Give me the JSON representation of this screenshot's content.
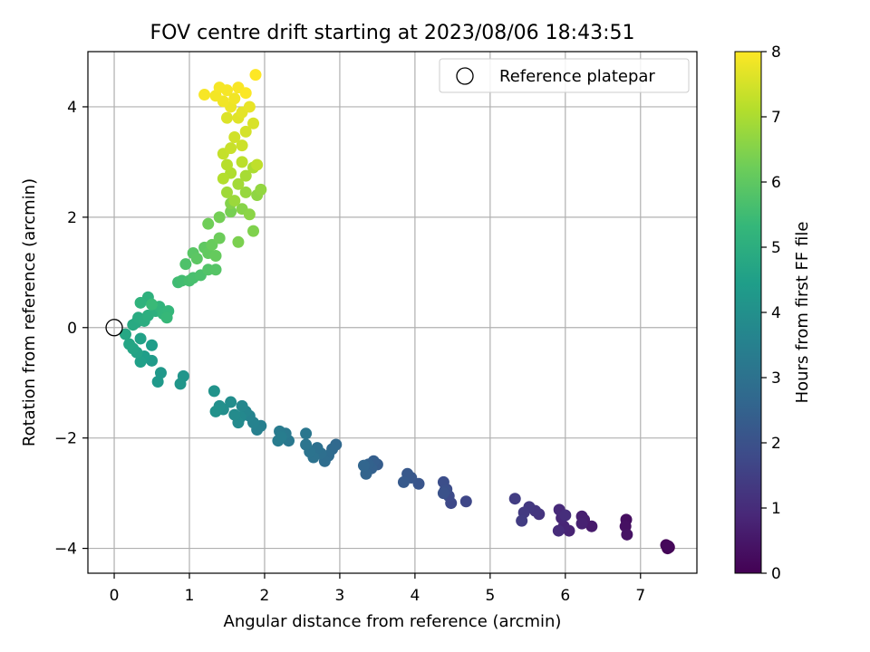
{
  "chart_data": {
    "type": "scatter",
    "title": "FOV centre drift starting at 2023/08/06 18:43:51",
    "xlabel": "Angular distance from reference (arcmin)",
    "ylabel": "Rotation from reference (arcmin)",
    "colorbar_label": "Hours from first FF file",
    "xlim": [
      -0.35,
      7.75
    ],
    "ylim": [
      -4.45,
      5.0
    ],
    "x_ticks": [
      0,
      1,
      2,
      3,
      4,
      5,
      6,
      7
    ],
    "y_ticks": [
      -4,
      -2,
      0,
      2,
      4
    ],
    "colorbar_ticks": [
      0,
      1,
      2,
      3,
      4,
      5,
      6,
      7,
      8
    ],
    "colorbar_range": [
      0,
      8
    ],
    "colormap": "viridis",
    "grid": true,
    "legend": {
      "placement": "top-right",
      "entries": [
        {
          "label": "Reference platepar",
          "marker": "open-circle"
        }
      ]
    },
    "reference_point": {
      "x": 0,
      "y": 0
    },
    "points": [
      [
        7.38,
        -3.98,
        0.0
      ],
      [
        7.36,
        -4.0,
        0.05
      ],
      [
        7.34,
        -3.94,
        0.1
      ],
      [
        7.37,
        -3.96,
        0.15
      ],
      [
        6.81,
        -3.48,
        0.3
      ],
      [
        6.8,
        -3.6,
        0.35
      ],
      [
        6.82,
        -3.75,
        0.4
      ],
      [
        6.35,
        -3.6,
        0.6
      ],
      [
        6.25,
        -3.48,
        0.65
      ],
      [
        6.22,
        -3.42,
        0.7
      ],
      [
        6.22,
        -3.55,
        0.75
      ],
      [
        6.05,
        -3.68,
        0.8
      ],
      [
        5.98,
        -3.6,
        0.85
      ],
      [
        5.95,
        -3.45,
        0.9
      ],
      [
        5.92,
        -3.3,
        0.95
      ],
      [
        5.91,
        -3.68,
        1.0
      ],
      [
        6.0,
        -3.4,
        1.05
      ],
      [
        5.65,
        -3.38,
        1.2
      ],
      [
        5.6,
        -3.32,
        1.25
      ],
      [
        5.52,
        -3.25,
        1.3
      ],
      [
        5.45,
        -3.35,
        1.35
      ],
      [
        5.42,
        -3.5,
        1.4
      ],
      [
        5.33,
        -3.1,
        1.45
      ],
      [
        4.68,
        -3.15,
        1.7
      ],
      [
        4.48,
        -3.18,
        1.75
      ],
      [
        4.45,
        -3.05,
        1.8
      ],
      [
        4.42,
        -2.93,
        1.85
      ],
      [
        4.38,
        -2.8,
        1.9
      ],
      [
        4.4,
        -2.95,
        1.95
      ],
      [
        4.38,
        -3.0,
        2.0
      ],
      [
        4.05,
        -2.83,
        2.1
      ],
      [
        3.95,
        -2.72,
        2.15
      ],
      [
        3.9,
        -2.65,
        2.2
      ],
      [
        3.85,
        -2.8,
        2.25
      ],
      [
        3.5,
        -2.48,
        2.35
      ],
      [
        3.45,
        -2.42,
        2.4
      ],
      [
        3.42,
        -2.55,
        2.45
      ],
      [
        3.38,
        -2.48,
        2.5
      ],
      [
        3.35,
        -2.65,
        2.55
      ],
      [
        3.32,
        -2.5,
        2.6
      ],
      [
        2.95,
        -2.12,
        2.7
      ],
      [
        2.9,
        -2.2,
        2.75
      ],
      [
        2.85,
        -2.32,
        2.8
      ],
      [
        2.8,
        -2.42,
        2.85
      ],
      [
        2.75,
        -2.28,
        2.9
      ],
      [
        2.7,
        -2.18,
        2.95
      ],
      [
        2.65,
        -2.35,
        3.0
      ],
      [
        2.6,
        -2.25,
        3.05
      ],
      [
        2.55,
        -2.12,
        3.1
      ],
      [
        2.55,
        -1.92,
        3.15
      ],
      [
        2.32,
        -2.05,
        3.2
      ],
      [
        2.28,
        -1.92,
        3.25
      ],
      [
        2.2,
        -1.88,
        3.3
      ],
      [
        2.18,
        -2.05,
        3.35
      ],
      [
        2.22,
        -1.98,
        3.4
      ],
      [
        1.95,
        -1.78,
        3.45
      ],
      [
        1.9,
        -1.85,
        3.5
      ],
      [
        1.85,
        -1.72,
        3.55
      ],
      [
        1.8,
        -1.6,
        3.6
      ],
      [
        1.75,
        -1.52,
        3.65
      ],
      [
        1.7,
        -1.42,
        3.7
      ],
      [
        1.68,
        -1.62,
        3.75
      ],
      [
        1.65,
        -1.72,
        3.8
      ],
      [
        1.6,
        -1.58,
        3.85
      ],
      [
        1.55,
        -1.35,
        3.9
      ],
      [
        1.45,
        -1.48,
        3.95
      ],
      [
        1.4,
        -1.42,
        4.0
      ],
      [
        1.35,
        -1.52,
        4.05
      ],
      [
        1.33,
        -1.15,
        4.1
      ],
      [
        0.92,
        -0.88,
        4.15
      ],
      [
        0.88,
        -1.02,
        4.2
      ],
      [
        0.62,
        -0.82,
        4.25
      ],
      [
        0.58,
        -0.98,
        4.3
      ],
      [
        0.5,
        -0.6,
        4.35
      ],
      [
        0.5,
        -0.32,
        4.4
      ],
      [
        0.4,
        -0.52,
        4.45
      ],
      [
        0.35,
        -0.62,
        4.5
      ],
      [
        0.35,
        -0.2,
        4.55
      ],
      [
        0.3,
        -0.45,
        4.6
      ],
      [
        0.25,
        -0.38,
        4.65
      ],
      [
        0.2,
        -0.3,
        4.7
      ],
      [
        0.15,
        -0.12,
        4.75
      ],
      [
        0.3,
        0.1,
        4.8
      ],
      [
        0.25,
        0.05,
        4.85
      ],
      [
        0.32,
        0.18,
        4.9
      ],
      [
        0.4,
        0.12,
        4.95
      ],
      [
        0.45,
        0.22,
        5.0
      ],
      [
        0.55,
        0.3,
        5.05
      ],
      [
        0.45,
        0.55,
        5.1
      ],
      [
        0.35,
        0.45,
        5.15
      ],
      [
        0.6,
        0.38,
        5.2
      ],
      [
        0.65,
        0.25,
        5.25
      ],
      [
        0.72,
        0.3,
        5.3
      ],
      [
        0.7,
        0.18,
        5.35
      ],
      [
        0.5,
        0.42,
        5.4
      ],
      [
        0.85,
        0.82,
        5.5
      ],
      [
        0.9,
        0.85,
        5.55
      ],
      [
        1.0,
        0.85,
        5.6
      ],
      [
        1.05,
        0.9,
        5.65
      ],
      [
        1.15,
        0.95,
        5.7
      ],
      [
        0.95,
        1.15,
        5.75
      ],
      [
        1.25,
        1.05,
        5.8
      ],
      [
        1.35,
        1.05,
        5.85
      ],
      [
        1.05,
        1.35,
        5.9
      ],
      [
        1.1,
        1.25,
        5.95
      ],
      [
        1.2,
        1.45,
        6.0
      ],
      [
        1.25,
        1.35,
        6.05
      ],
      [
        1.35,
        1.3,
        6.1
      ],
      [
        1.3,
        1.5,
        6.15
      ],
      [
        1.4,
        1.62,
        6.2
      ],
      [
        1.25,
        1.88,
        6.25
      ],
      [
        1.4,
        2.0,
        6.3
      ],
      [
        1.55,
        2.1,
        6.35
      ],
      [
        1.65,
        1.55,
        6.4
      ],
      [
        1.85,
        1.75,
        6.45
      ],
      [
        1.55,
        2.25,
        6.5
      ],
      [
        1.7,
        2.15,
        6.55
      ],
      [
        1.8,
        2.05,
        6.6
      ],
      [
        1.9,
        2.4,
        6.65
      ],
      [
        1.95,
        2.5,
        6.7
      ],
      [
        1.75,
        2.45,
        6.75
      ],
      [
        1.6,
        2.3,
        6.8
      ],
      [
        1.5,
        2.45,
        6.85
      ],
      [
        1.65,
        2.6,
        6.9
      ],
      [
        1.75,
        2.75,
        6.95
      ],
      [
        1.85,
        2.9,
        7.0
      ],
      [
        1.55,
        2.8,
        7.05
      ],
      [
        1.45,
        2.7,
        7.1
      ],
      [
        1.5,
        2.95,
        7.15
      ],
      [
        1.7,
        3.0,
        7.2
      ],
      [
        1.9,
        2.95,
        7.25
      ],
      [
        1.45,
        3.15,
        7.3
      ],
      [
        1.55,
        3.25,
        7.35
      ],
      [
        1.7,
        3.3,
        7.4
      ],
      [
        1.6,
        3.45,
        7.45
      ],
      [
        1.75,
        3.55,
        7.5
      ],
      [
        1.85,
        3.7,
        7.55
      ],
      [
        1.5,
        3.8,
        7.6
      ],
      [
        1.65,
        3.8,
        7.65
      ],
      [
        1.7,
        3.9,
        7.7
      ],
      [
        1.8,
        4.0,
        7.75
      ],
      [
        1.55,
        4.0,
        7.8
      ],
      [
        1.45,
        4.1,
        7.85
      ],
      [
        1.35,
        4.2,
        7.88
      ],
      [
        1.4,
        4.35,
        7.9
      ],
      [
        1.2,
        4.22,
        7.93
      ],
      [
        1.65,
        4.35,
        7.95
      ],
      [
        1.75,
        4.25,
        7.97
      ],
      [
        1.88,
        4.58,
        8.0
      ],
      [
        1.5,
        4.3,
        7.92
      ],
      [
        1.6,
        4.15,
        7.85
      ]
    ]
  }
}
